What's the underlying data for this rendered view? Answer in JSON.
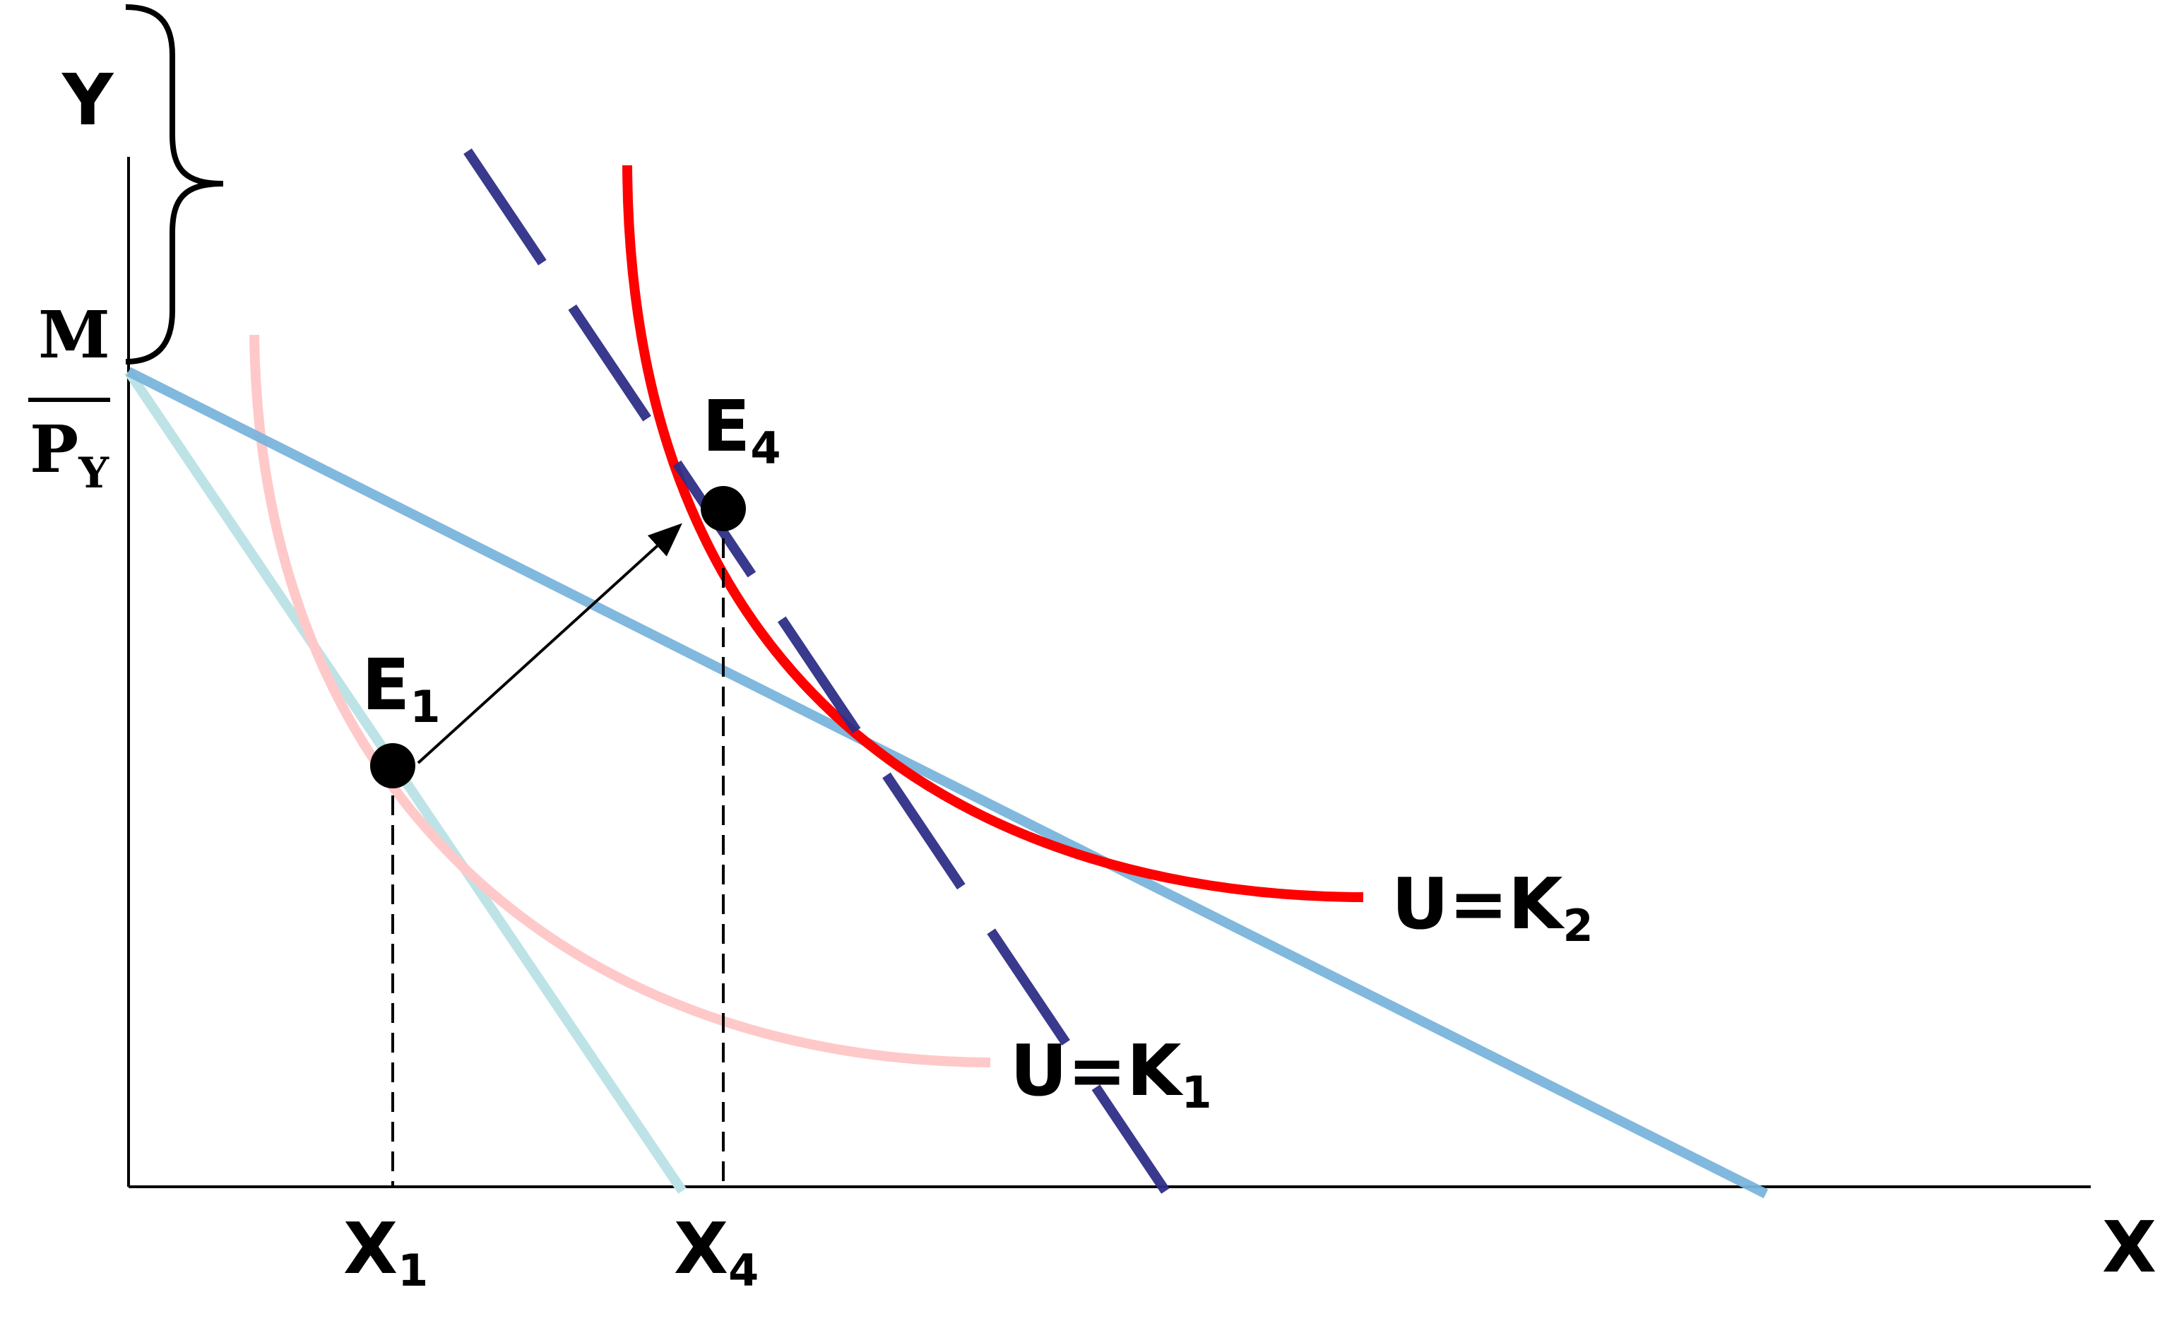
{
  "axes": {
    "y_label": "Y",
    "x_label": "X",
    "intercept": {
      "numerator": "M",
      "denominator": "P",
      "denominator_sub": "Y"
    }
  },
  "points": {
    "e1": {
      "label": "E",
      "sub": "1"
    },
    "e4": {
      "label": "E",
      "sub": "4"
    }
  },
  "ticks": {
    "x1": {
      "label": "X",
      "sub": "1"
    },
    "x4": {
      "label": "X",
      "sub": "4"
    }
  },
  "curves": {
    "k1": {
      "label": "U=K",
      "sub": "1",
      "color": "#ffc9c9"
    },
    "k2": {
      "label": "U=K",
      "sub": "2",
      "color": "#ff0000"
    }
  },
  "lines": {
    "original_budget": {
      "color": "#bde3e6"
    },
    "rotated_budget": {
      "color": "#7ab4dc"
    },
    "compensated_budget": {
      "color": "#2e2e87"
    }
  }
}
